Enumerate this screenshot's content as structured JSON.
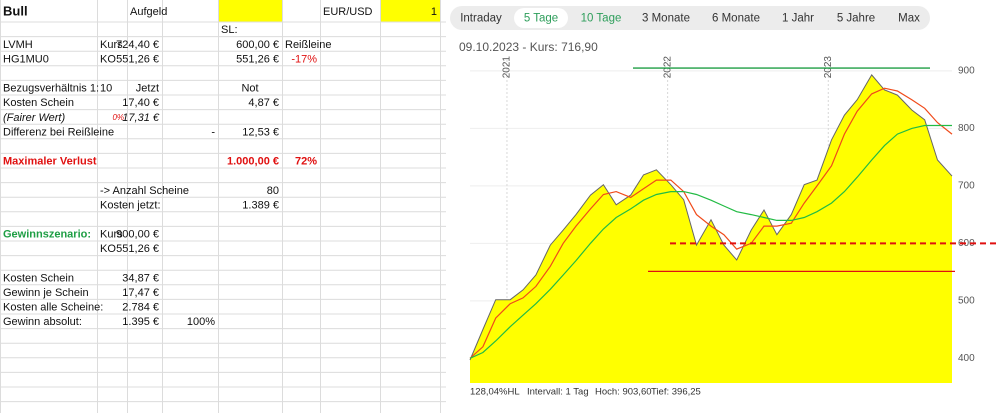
{
  "spreadsheet": {
    "rows": [
      [
        "Bull",
        null,
        "Aufgeld",
        null,
        null,
        null,
        "EUR/USD",
        "1"
      ],
      [
        null,
        null,
        null,
        null,
        "SL:"
      ],
      [
        "LVMH",
        "Kurs",
        "724,40 €",
        null,
        "600,00 €",
        "Reißleine"
      ],
      [
        "HG1MU0",
        "KO",
        "551,26 €",
        null,
        "551,26 €",
        "-17%"
      ],
      [],
      [
        "Bezugsverhältnis 1:",
        "10",
        "Jetzt",
        null,
        "Not"
      ],
      [
        "Kosten Schein",
        null,
        "17,40 €",
        null,
        "4,87 €"
      ],
      [
        "(Fairer Wert)",
        "0%",
        "17,31 €"
      ],
      [
        "Differenz bei Reißleine",
        null,
        null,
        "-",
        "12,53 €"
      ],
      [],
      [
        "Maximaler Verlust",
        null,
        null,
        null,
        "1.000,00 €",
        "72%"
      ],
      [],
      [
        null,
        "-> Anzahl Scheine",
        null,
        null,
        "80"
      ],
      [
        null,
        "Kosten jetzt:",
        null,
        null,
        "1.389 €"
      ],
      [],
      [
        "Gewinnszenario:",
        "Kurs",
        "900,00 €"
      ],
      [
        null,
        "KO",
        "551,26 €"
      ],
      [],
      [
        "Kosten Schein",
        null,
        "34,87 €"
      ],
      [
        "Gewinn je Schein",
        null,
        "17,47 €"
      ],
      [
        "Kosten alle Scheine:",
        null,
        "2.784 €"
      ],
      [
        "Gewinn absolut:",
        null,
        "1.395 €",
        "100%"
      ]
    ]
  },
  "chart_tabs": {
    "items": [
      "Intraday",
      "5 Tage",
      "10 Tage",
      "3 Monate",
      "6 Monate",
      "1 Jahr",
      "5 Jahre",
      "Max"
    ],
    "selected": 1
  },
  "chart_data": {
    "type": "area",
    "subtitle": "09.10.2023  -  Kurs: 716,90",
    "x": [
      2020.77,
      2020.85,
      2020.93,
      2021.02,
      2021.1,
      2021.18,
      2021.27,
      2021.35,
      2021.43,
      2021.52,
      2021.6,
      2021.68,
      2021.77,
      2021.85,
      2021.93,
      2022.02,
      2022.1,
      2022.18,
      2022.27,
      2022.35,
      2022.43,
      2022.52,
      2022.6,
      2022.68,
      2022.77,
      2022.85,
      2022.93,
      2023.02,
      2023.1,
      2023.18,
      2023.27,
      2023.35,
      2023.43,
      2023.52,
      2023.6,
      2023.68,
      2023.77
    ],
    "series": [
      {
        "color": "#ffff00",
        "line_color": "#666666",
        "values": [
          397,
          450,
          502,
          502,
          519,
          545,
          597,
          623,
          650,
          684,
          702,
          667,
          684,
          719,
          728,
          702,
          676,
          597,
          641,
          597,
          571,
          623,
          658,
          615,
          650,
          702,
          710,
          780,
          823,
          850,
          893,
          867,
          858,
          832,
          815,
          745,
          717
        ]
      },
      {
        "color": "#f04a1a",
        "values": [
          400,
          420,
          470,
          495,
          505,
          525,
          560,
          600,
          630,
          660,
          685,
          690,
          680,
          695,
          710,
          710,
          690,
          650,
          630,
          615,
          590,
          600,
          630,
          630,
          635,
          670,
          700,
          735,
          790,
          830,
          860,
          870,
          865,
          850,
          835,
          810,
          790
        ]
      },
      {
        "color": "#22bb44",
        "values": [
          400,
          410,
          430,
          455,
          475,
          495,
          520,
          545,
          570,
          600,
          625,
          645,
          660,
          675,
          685,
          690,
          690,
          685,
          675,
          665,
          655,
          650,
          645,
          640,
          640,
          645,
          655,
          670,
          690,
          715,
          745,
          770,
          790,
          800,
          805,
          805,
          805
        ]
      }
    ],
    "reference_lines": [
      {
        "value": 905,
        "color": "#1e9e44"
      },
      {
        "value": 600,
        "color": "#e01010",
        "dash": true
      },
      {
        "value": 551.26,
        "color": "#e01010"
      }
    ],
    "xlim": [
      2020.77,
      2023.77
    ],
    "xticks": [
      2021,
      2022,
      2023
    ],
    "ylim": [
      357,
      919
    ],
    "yticks": [
      400,
      500,
      600,
      700,
      800,
      900
    ],
    "grid": true,
    "footer": [
      "128,04%HL",
      "Intervall: 1 Tag",
      "Hoch: 903,60",
      "Tief: 396,25"
    ]
  }
}
